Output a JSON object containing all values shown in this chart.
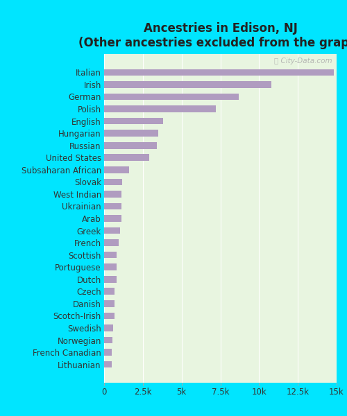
{
  "title_line1": "Ancestries in Edison, NJ",
  "title_line2": "(Other ancestries excluded from the graph)",
  "categories": [
    "Italian",
    "Irish",
    "German",
    "Polish",
    "English",
    "Hungarian",
    "Russian",
    "United States",
    "Subsaharan African",
    "Slovak",
    "West Indian",
    "Ukrainian",
    "Arab",
    "Greek",
    "French",
    "Scottish",
    "Portuguese",
    "Dutch",
    "Czech",
    "Danish",
    "Scotch-Irish",
    "Swedish",
    "Norwegian",
    "French Canadian",
    "Lithuanian"
  ],
  "values": [
    14800,
    10800,
    8700,
    7200,
    3800,
    3500,
    3400,
    2900,
    1600,
    1150,
    1100,
    1100,
    1100,
    1050,
    950,
    800,
    800,
    800,
    680,
    650,
    650,
    570,
    520,
    510,
    490
  ],
  "bar_color": "#b09cc0",
  "background_color": "#00e5ff",
  "plot_bg_color": "#e8f5e0",
  "xlim": [
    0,
    15000
  ],
  "xticks": [
    0,
    2500,
    5000,
    7500,
    10000,
    12500,
    15000
  ],
  "xticklabels": [
    "0",
    "2.5k",
    "5k",
    "7.5k",
    "10k",
    "12.5k",
    "15k"
  ],
  "title_fontsize": 12,
  "label_fontsize": 8.5,
  "tick_fontsize": 8.5
}
